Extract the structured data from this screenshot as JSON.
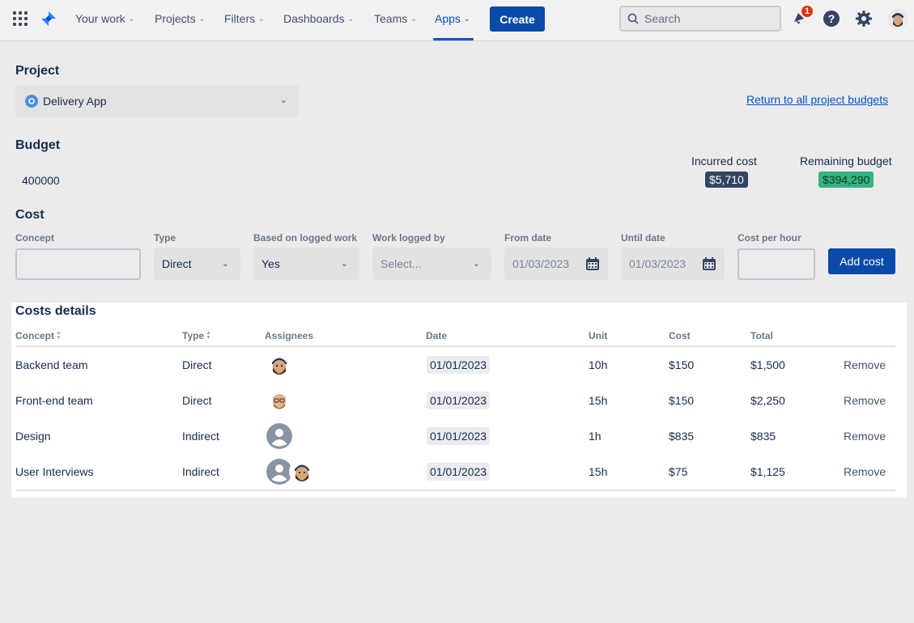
{
  "nav": {
    "items": [
      {
        "label": "Your work"
      },
      {
        "label": "Projects"
      },
      {
        "label": "Filters"
      },
      {
        "label": "Dashboards"
      },
      {
        "label": "Teams"
      },
      {
        "label": "Apps"
      }
    ],
    "active": "Apps",
    "create_label": "Create",
    "search_placeholder": "Search",
    "notification_count": "1"
  },
  "project": {
    "title": "Project",
    "selected": "Delivery App",
    "return_link": "Return to all project budgets"
  },
  "budget": {
    "title": "Budget",
    "value": "400000",
    "incurred_label": "Incurred cost",
    "incurred_value": "$5,710",
    "remaining_label": "Remaining budget",
    "remaining_value": "$394,290"
  },
  "cost_form": {
    "title": "Cost",
    "concept_label": "Concept",
    "type_label": "Type",
    "type_value": "Direct",
    "based_label": "Based on logged work",
    "based_value": "Yes",
    "logged_by_label": "Work logged by",
    "logged_by_placeholder": "Select...",
    "from_label": "From date",
    "from_value": "01/03/2023",
    "until_label": "Until date",
    "until_value": "01/03/2023",
    "cost_per_hour_label": "Cost per hour",
    "add_label": "Add cost"
  },
  "costs": {
    "title": "Costs details",
    "headers": {
      "concept": "Concept",
      "type": "Type",
      "assignees": "Assignees",
      "date": "Date",
      "unit": "Unit",
      "cost": "Cost",
      "total": "Total"
    },
    "remove_label": "Remove",
    "rows": [
      {
        "concept": "Backend team",
        "type": "Direct",
        "date": "01/01/2023",
        "unit": "10h",
        "cost": "$150",
        "total": "$1,500",
        "assignees": [
          "avatar-dark-beard"
        ]
      },
      {
        "concept": "Front-end team",
        "type": "Direct",
        "date": "01/01/2023",
        "unit": "15h",
        "cost": "$150",
        "total": "$2,250",
        "assignees": [
          "avatar-glasses"
        ]
      },
      {
        "concept": "Design",
        "type": "Indirect",
        "date": "01/01/2023",
        "unit": "1h",
        "cost": "$835",
        "total": "$835",
        "assignees": [
          "avatar-default"
        ]
      },
      {
        "concept": "User Interviews",
        "type": "Indirect",
        "date": "01/01/2023",
        "unit": "15h",
        "cost": "$75",
        "total": "$1,125",
        "assignees": [
          "avatar-default",
          "avatar-dark-beard"
        ]
      }
    ]
  },
  "colors": {
    "primary": "#0a4aa8",
    "link": "#0052cc",
    "incurred_bg": "#344563",
    "remaining_bg": "#36b37e",
    "badge": "#de350b"
  }
}
